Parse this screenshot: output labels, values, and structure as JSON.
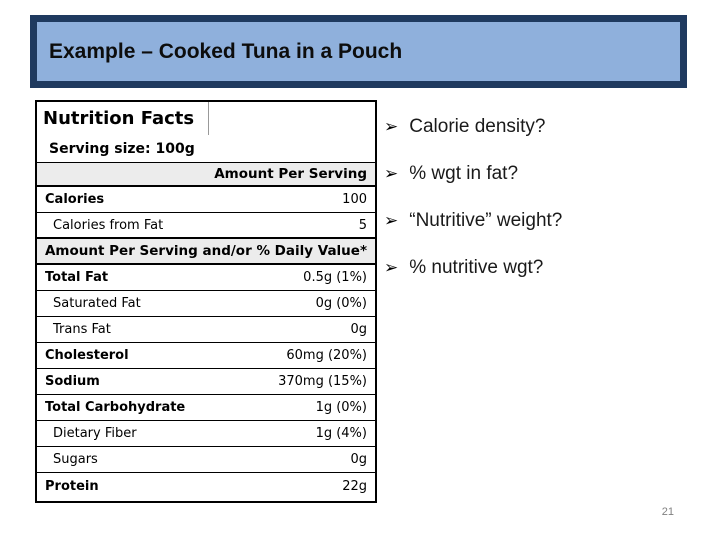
{
  "slide": {
    "title": "Example – Cooked Tuna in a Pouch",
    "page_number": "21"
  },
  "nutrition_label": {
    "heading": "Nutrition Facts",
    "serving_size": "Serving size: 100g",
    "section1_header": "Amount Per Serving",
    "section2_header": "Amount Per Serving and/or % Daily Value*",
    "rows": [
      {
        "label": "Calories",
        "value": "100"
      },
      {
        "label": "Calories from Fat",
        "value": "5"
      },
      {
        "label": "Total Fat",
        "value": "0.5g (1%)"
      },
      {
        "label": "Saturated Fat",
        "value": "0g (0%)"
      },
      {
        "label": "Trans Fat",
        "value": "0g"
      },
      {
        "label": "Cholesterol",
        "value": "60mg (20%)"
      },
      {
        "label": "Sodium",
        "value": "370mg (15%)"
      },
      {
        "label": "Total Carbohydrate",
        "value": "1g (0%)"
      },
      {
        "label": "Dietary Fiber",
        "value": "1g (4%)"
      },
      {
        "label": "Sugars",
        "value": "0g"
      },
      {
        "label": "Protein",
        "value": "22g"
      }
    ]
  },
  "bullets": {
    "marker": "➢",
    "items": [
      "Calorie density?",
      "% wgt in fat?",
      "“Nutritive” weight?",
      "% nutritive wgt?"
    ]
  },
  "colors": {
    "banner_border": "#1f3a5f",
    "banner_fill": "#8fb0dc",
    "row_shade": "#ececec",
    "page_number_gray": "#808080"
  }
}
